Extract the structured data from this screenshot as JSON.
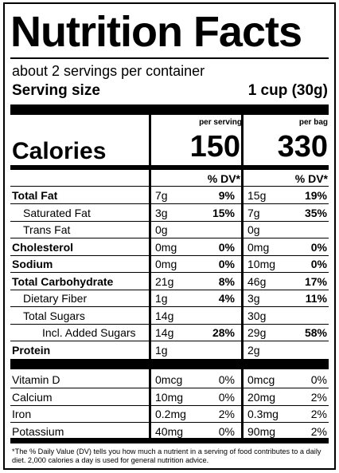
{
  "title": "Nutrition Facts",
  "servings_per_container": "about 2 servings per container",
  "serving_size_label": "Serving size",
  "serving_size_value": "1 cup (30g)",
  "columns": {
    "per_serving": "per serving",
    "per_bag": "per bag",
    "dv_label": "% DV*"
  },
  "calories": {
    "label": "Calories",
    "per_serving": "150",
    "per_bag": "330"
  },
  "nutrients": [
    {
      "name": "Total Fat",
      "bold": true,
      "indent": 0,
      "serv_amt": "7g",
      "serv_dv": "9%",
      "bag_amt": "15g",
      "bag_dv": "19%"
    },
    {
      "name": "Saturated Fat",
      "bold": false,
      "indent": 1,
      "serv_amt": "3g",
      "serv_dv": "15%",
      "bag_amt": "7g",
      "bag_dv": "35%"
    },
    {
      "name": "Trans Fat",
      "bold": false,
      "indent": 1,
      "serv_amt": "0g",
      "serv_dv": "",
      "bag_amt": "0g",
      "bag_dv": ""
    },
    {
      "name": "Cholesterol",
      "bold": true,
      "indent": 0,
      "serv_amt": "0mg",
      "serv_dv": "0%",
      "bag_amt": "0mg",
      "bag_dv": "0%"
    },
    {
      "name": "Sodium",
      "bold": true,
      "indent": 0,
      "serv_amt": "0mg",
      "serv_dv": "0%",
      "bag_amt": "10mg",
      "bag_dv": "0%"
    },
    {
      "name": "Total Carbohydrate",
      "bold": true,
      "indent": 0,
      "serv_amt": "21g",
      "serv_dv": "8%",
      "bag_amt": "46g",
      "bag_dv": "17%"
    },
    {
      "name": "Dietary Fiber",
      "bold": false,
      "indent": 1,
      "serv_amt": "1g",
      "serv_dv": "4%",
      "bag_amt": "3g",
      "bag_dv": "11%"
    },
    {
      "name": "Total Sugars",
      "bold": false,
      "indent": 1,
      "serv_amt": "14g",
      "serv_dv": "",
      "bag_amt": "30g",
      "bag_dv": ""
    },
    {
      "name": "Incl. Added Sugars",
      "bold": false,
      "indent": 2,
      "serv_amt": "14g",
      "serv_dv": "28%",
      "bag_amt": "29g",
      "bag_dv": "58%"
    },
    {
      "name": "Protein",
      "bold": true,
      "indent": 0,
      "serv_amt": "1g",
      "serv_dv": "",
      "bag_amt": "2g",
      "bag_dv": ""
    }
  ],
  "vitamins": [
    {
      "name": "Vitamin D",
      "serv_amt": "0mcg",
      "serv_dv": "0%",
      "bag_amt": "0mcg",
      "bag_dv": "0%"
    },
    {
      "name": "Calcium",
      "serv_amt": "10mg",
      "serv_dv": "0%",
      "bag_amt": "20mg",
      "bag_dv": "2%"
    },
    {
      "name": "Iron",
      "serv_amt": "0.2mg",
      "serv_dv": "2%",
      "bag_amt": "0.3mg",
      "bag_dv": "2%"
    },
    {
      "name": "Potassium",
      "serv_amt": "40mg",
      "serv_dv": "0%",
      "bag_amt": "90mg",
      "bag_dv": "2%"
    }
  ],
  "footnote": "*The % Daily Value (DV) tells you how much a nutrient in a serving of food contributes to a daily diet. 2,000 calories a day is used for general nutrition advice."
}
